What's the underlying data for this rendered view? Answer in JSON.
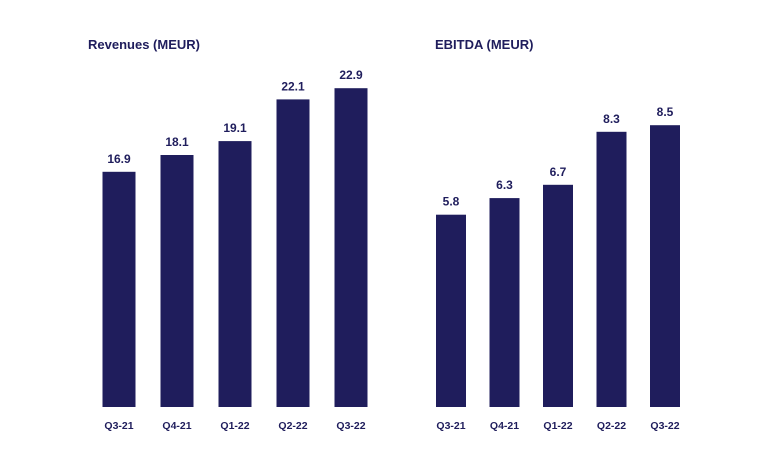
{
  "colors": {
    "bar": "#1f1d5c",
    "text": "#1f1d5c",
    "background": "#ffffff"
  },
  "chart_data": [
    {
      "type": "bar",
      "title": "Revenues (MEUR)",
      "categories": [
        "Q3-21",
        "Q4-21",
        "Q1-22",
        "Q2-22",
        "Q3-22"
      ],
      "values": [
        16.9,
        18.1,
        19.1,
        22.1,
        22.9
      ],
      "value_labels": [
        "16.9",
        "18.1",
        "19.1",
        "22.1",
        "22.9"
      ],
      "xlabel": "",
      "ylabel": "",
      "ylim": [
        0,
        25
      ],
      "grid": false,
      "legend": "none"
    },
    {
      "type": "bar",
      "title": "EBITDA (MEUR)",
      "categories": [
        "Q3-21",
        "Q4-21",
        "Q1-22",
        "Q2-22",
        "Q3-22"
      ],
      "values": [
        5.8,
        6.3,
        6.7,
        8.3,
        8.5
      ],
      "value_labels": [
        "5.8",
        "6.3",
        "6.7",
        "8.3",
        "8.5"
      ],
      "xlabel": "",
      "ylabel": "",
      "ylim": [
        0,
        9.5
      ],
      "grid": false,
      "legend": "none"
    }
  ]
}
